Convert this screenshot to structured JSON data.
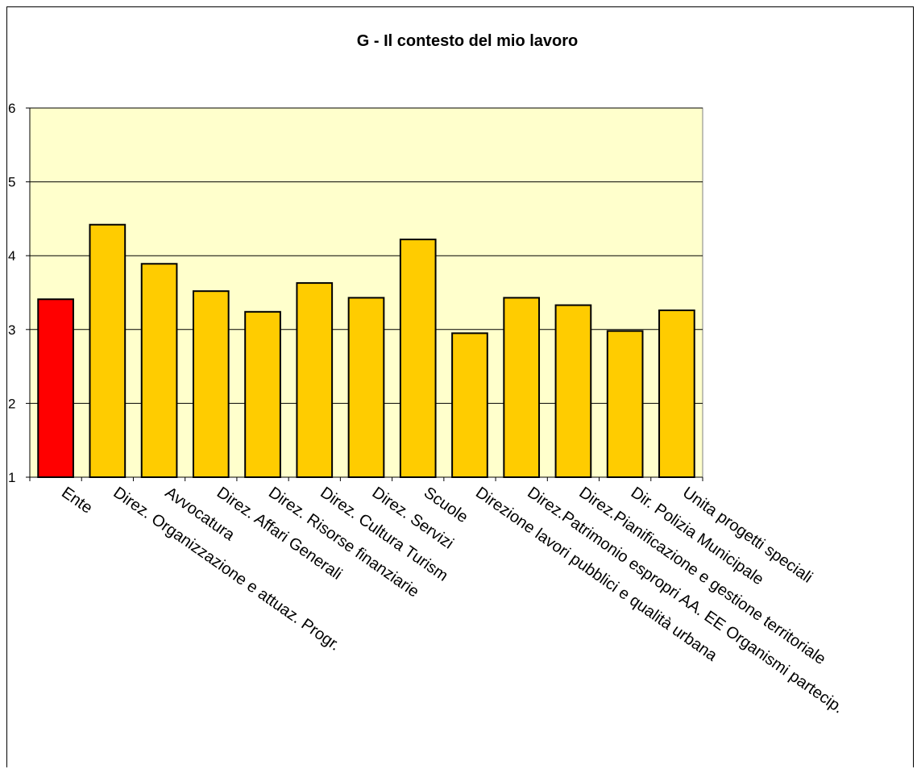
{
  "chart_data": {
    "type": "bar",
    "title": "G - Il contesto del mio lavoro",
    "xlabel": "",
    "ylabel": "",
    "ylim": [
      1,
      6
    ],
    "yticks": [
      1,
      2,
      3,
      4,
      5,
      6
    ],
    "grid": true,
    "legend": "none",
    "colors": {
      "plot_background": "#ffffcc",
      "highlight_bar": "#ff0000",
      "bar": "#ffcc00",
      "bar_outline": "#000000",
      "gridline": "#000000"
    },
    "categories": [
      "Ente",
      "Direz. Organizzazione e attuaz. Progr.",
      "Avvocatura",
      "Direz. Affari Generali",
      "Direz. Risorse finanziarie",
      "Direz.  Cultura Turism",
      "Direz. Servizi",
      "Scuole",
      "Direzione lavori pubblici e qualità urbana",
      "Direz.Patrimonio espropri AA. EE Organismi partecip.",
      "Direz.Pianificazione e gestione territoriale",
      "Dir. Polizia Municipale",
      "Unita progetti speciali"
    ],
    "values": [
      3.41,
      4.42,
      3.89,
      3.52,
      3.24,
      3.63,
      3.43,
      4.22,
      2.95,
      3.43,
      3.33,
      2.98,
      3.26
    ],
    "highlighted_index": 0
  }
}
